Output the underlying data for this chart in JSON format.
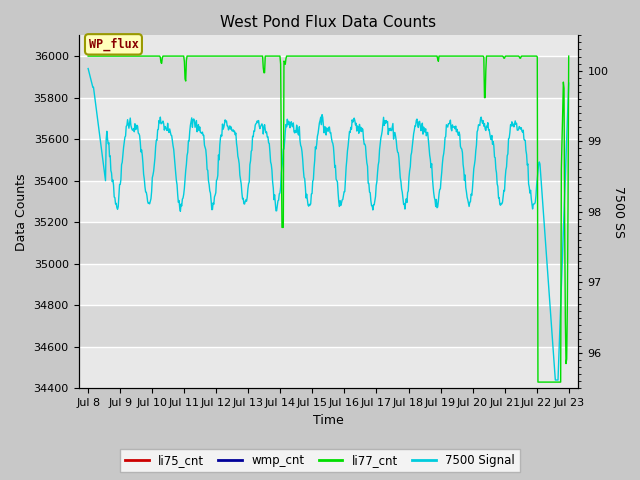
{
  "title": "West Pond Flux Data Counts",
  "xlabel": "Time",
  "ylabel_left": "Data Counts",
  "ylabel_right": "7500 SS",
  "annotation_box": "WP_flux",
  "ylim_left": [
    34400,
    36100
  ],
  "ylim_right": [
    95.5,
    100.5
  ],
  "x_tick_labels": [
    "Jul 8",
    "Jul 9",
    "Jul 10",
    "Jul 11",
    "Jul 12",
    "Jul 13",
    "Jul 14",
    "Jul 15",
    "Jul 16",
    "Jul 17",
    "Jul 18",
    "Jul 19",
    "Jul 20",
    "Jul 21",
    "Jul 22",
    "Jul 23"
  ],
  "x_tick_pos": [
    0,
    1,
    2,
    3,
    4,
    5,
    6,
    7,
    8,
    9,
    10,
    11,
    12,
    13,
    14,
    15
  ],
  "legend_entries": [
    "li75_cnt",
    "wmp_cnt",
    "li77_cnt",
    "7500 Signal"
  ],
  "li77_color": "#00dd00",
  "signal_color": "#00ccdd",
  "li75_color": "#cc0000",
  "wmp_color": "#000099",
  "fig_bg": "#c8c8c8",
  "plot_bg_light": "#e8e8e8",
  "plot_bg_dark": "#d8d8d8",
  "grid_color": "#ffffff",
  "title_fontsize": 11,
  "axis_fontsize": 9,
  "tick_fontsize": 8
}
